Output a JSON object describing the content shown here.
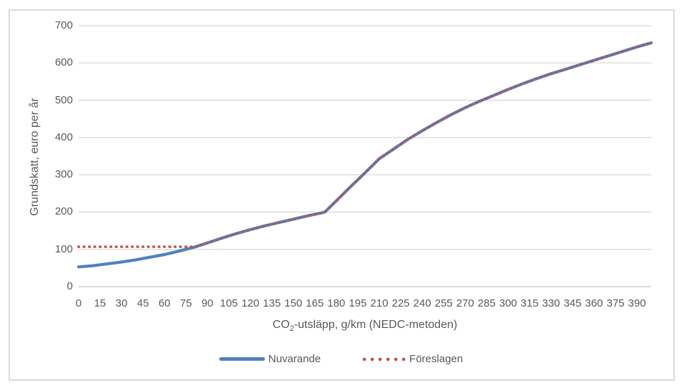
{
  "chart": {
    "y_axis_title": "Grundskatt, euro per år",
    "x_axis_title_prefix": "CO",
    "x_axis_title_sub": "2",
    "x_axis_title_suffix": "-utsläpp, g/km (NEDC-metoden)",
    "legend": {
      "nuvarande_label": "Nuvarande",
      "foreslagen_label": "Föreslagen"
    },
    "colors": {
      "nuvarande_line": "#4F81BD",
      "foreslagen_line": "#C0504D",
      "gridline": "#D9D9D9",
      "axis_line": "#BFBFBF",
      "text": "#595959",
      "chart_border": "#DADADA"
    }
  },
  "chart_data": {
    "type": "line",
    "title": "",
    "xlabel": "CO2-utsläpp, g/km (NEDC-metoden)",
    "ylabel": "Grundskatt, euro per år",
    "xlim": [
      0,
      400
    ],
    "ylim": [
      0,
      700
    ],
    "x_ticks": [
      0,
      15,
      30,
      45,
      60,
      75,
      90,
      105,
      120,
      135,
      150,
      165,
      180,
      195,
      210,
      225,
      240,
      255,
      270,
      285,
      300,
      315,
      330,
      345,
      360,
      375,
      390
    ],
    "y_ticks": [
      0,
      100,
      200,
      300,
      400,
      500,
      600,
      700
    ],
    "grid": "horizontal",
    "legend_position": "bottom",
    "series": [
      {
        "name": "Nuvarande",
        "color": "#4F81BD",
        "style": "solid",
        "points": [
          [
            0,
            53
          ],
          [
            10,
            56
          ],
          [
            20,
            61
          ],
          [
            30,
            66
          ],
          [
            40,
            72
          ],
          [
            50,
            79
          ],
          [
            60,
            86
          ],
          [
            70,
            95
          ],
          [
            80,
            105
          ],
          [
            90,
            117
          ],
          [
            100,
            130
          ],
          [
            110,
            142
          ],
          [
            120,
            153
          ],
          [
            130,
            163
          ],
          [
            140,
            172
          ],
          [
            150,
            181
          ],
          [
            160,
            190
          ],
          [
            170,
            198
          ],
          [
            172,
            200
          ],
          [
            180,
            230
          ],
          [
            190,
            268
          ],
          [
            200,
            305
          ],
          [
            210,
            343
          ],
          [
            220,
            369
          ],
          [
            230,
            395
          ],
          [
            240,
            418
          ],
          [
            250,
            440
          ],
          [
            260,
            461
          ],
          [
            270,
            480
          ],
          [
            280,
            497
          ],
          [
            290,
            513
          ],
          [
            300,
            529
          ],
          [
            310,
            544
          ],
          [
            320,
            558
          ],
          [
            330,
            571
          ],
          [
            340,
            583
          ],
          [
            350,
            595
          ],
          [
            360,
            607
          ],
          [
            370,
            619
          ],
          [
            380,
            631
          ],
          [
            390,
            643
          ],
          [
            400,
            654
          ]
        ]
      },
      {
        "name": "Föreslagen",
        "color": "#C0504D",
        "style": "dotted",
        "points": [
          [
            0,
            107
          ],
          [
            10,
            107
          ],
          [
            20,
            107
          ],
          [
            30,
            107
          ],
          [
            40,
            107
          ],
          [
            50,
            107
          ],
          [
            60,
            107
          ],
          [
            70,
            107
          ],
          [
            80,
            107
          ],
          [
            82,
            107
          ],
          [
            90,
            117
          ],
          [
            100,
            130
          ],
          [
            110,
            142
          ],
          [
            120,
            153
          ],
          [
            130,
            163
          ],
          [
            140,
            172
          ],
          [
            150,
            181
          ],
          [
            160,
            190
          ],
          [
            170,
            198
          ],
          [
            172,
            200
          ],
          [
            180,
            230
          ],
          [
            190,
            268
          ],
          [
            200,
            305
          ],
          [
            210,
            343
          ],
          [
            220,
            369
          ],
          [
            230,
            395
          ],
          [
            240,
            418
          ],
          [
            250,
            440
          ],
          [
            260,
            461
          ],
          [
            270,
            480
          ],
          [
            280,
            497
          ],
          [
            290,
            513
          ],
          [
            300,
            529
          ],
          [
            310,
            544
          ],
          [
            320,
            558
          ],
          [
            330,
            571
          ],
          [
            340,
            583
          ],
          [
            350,
            595
          ],
          [
            360,
            607
          ],
          [
            370,
            619
          ],
          [
            380,
            631
          ],
          [
            390,
            643
          ],
          [
            400,
            654
          ]
        ]
      }
    ]
  }
}
